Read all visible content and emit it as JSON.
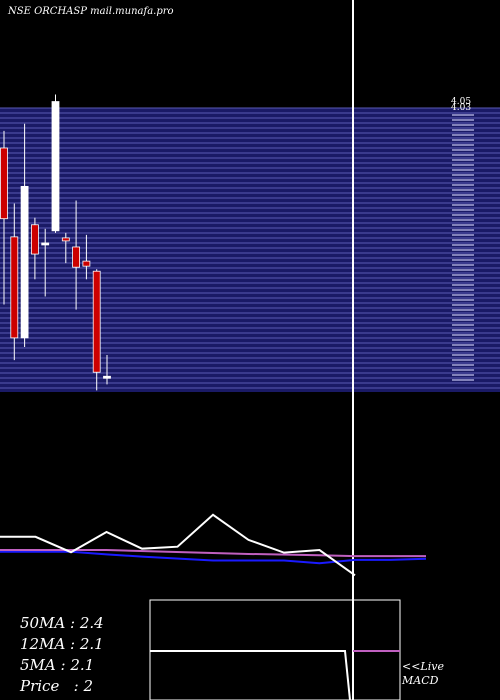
{
  "title": "NSE ORCHASP mail.munafa.pro",
  "colors": {
    "background": "#000000",
    "band": "#1a1a66",
    "band_line": "#5a5ab4",
    "up_candle": "#ffffff",
    "down_candle": "#cc0000",
    "wick": "#ffffff",
    "price_line": "#ffffff",
    "ma_line_pink": "#c060c0",
    "ma_line_blue": "#1a1aff",
    "ma_line_white": "#ffffff"
  },
  "chart_data": {
    "type": "candlestick",
    "price_axis": {
      "top_labels": [
        "4.05",
        "4.03"
      ]
    },
    "candles": [
      {
        "o": 3.3,
        "h": 4.17,
        "l": 2.45,
        "c": 4.0,
        "dir": "down"
      },
      {
        "o": 3.12,
        "h": 3.45,
        "l": 1.9,
        "c": 2.12,
        "dir": "down"
      },
      {
        "o": 2.12,
        "h": 4.24,
        "l": 2.03,
        "c": 3.62,
        "dir": "up"
      },
      {
        "o": 3.24,
        "h": 3.31,
        "l": 2.7,
        "c": 2.95,
        "dir": "down"
      },
      {
        "o": 3.05,
        "h": 3.2,
        "l": 2.53,
        "c": 3.06,
        "dir": "up"
      },
      {
        "o": 3.18,
        "h": 4.53,
        "l": 3.16,
        "c": 4.46,
        "dir": "up"
      },
      {
        "o": 3.11,
        "h": 3.16,
        "l": 2.86,
        "c": 3.08,
        "dir": "down"
      },
      {
        "o": 3.02,
        "h": 3.48,
        "l": 2.4,
        "c": 2.82,
        "dir": "down"
      },
      {
        "o": 2.88,
        "h": 3.14,
        "l": 2.7,
        "c": 2.83,
        "dir": "down"
      },
      {
        "o": 2.78,
        "h": 2.8,
        "l": 1.6,
        "c": 1.78,
        "dir": "down"
      },
      {
        "o": 1.72,
        "h": 1.95,
        "l": 1.66,
        "c": 1.74,
        "dir": "up"
      }
    ],
    "moving_averages": [
      {
        "label": "50MA",
        "value": "2.4"
      },
      {
        "label": "12MA",
        "value": "2.1"
      },
      {
        "label": "5MA",
        "value": "2.1"
      },
      {
        "label": "Price",
        "value": "2"
      }
    ],
    "lower_price_line": [
      [
        0,
        1.6
      ],
      [
        1,
        1.6
      ],
      [
        2,
        0.9
      ],
      [
        3,
        1.82
      ],
      [
        4,
        1.06
      ],
      [
        5,
        1.15
      ],
      [
        6,
        2.6
      ],
      [
        7,
        1.46
      ],
      [
        8,
        0.88
      ],
      [
        9,
        1.0
      ],
      [
        10,
        -0.15
      ]
    ],
    "lower_ma_pink": [
      [
        0,
        1.0
      ],
      [
        3,
        1.0
      ],
      [
        7,
        0.82
      ],
      [
        9,
        0.76
      ],
      [
        10,
        0.72
      ],
      [
        11,
        0.72
      ],
      [
        12,
        0.72
      ]
    ],
    "lower_ma_blue": [
      [
        0,
        0.92
      ],
      [
        2,
        0.92
      ],
      [
        3,
        0.8
      ],
      [
        4,
        0.7
      ],
      [
        6,
        0.52
      ],
      [
        8,
        0.52
      ],
      [
        9,
        0.4
      ],
      [
        10,
        0.55
      ],
      [
        11,
        0.55
      ],
      [
        12,
        0.6
      ]
    ],
    "macd_label": [
      "<<Live",
      "MACD"
    ]
  }
}
